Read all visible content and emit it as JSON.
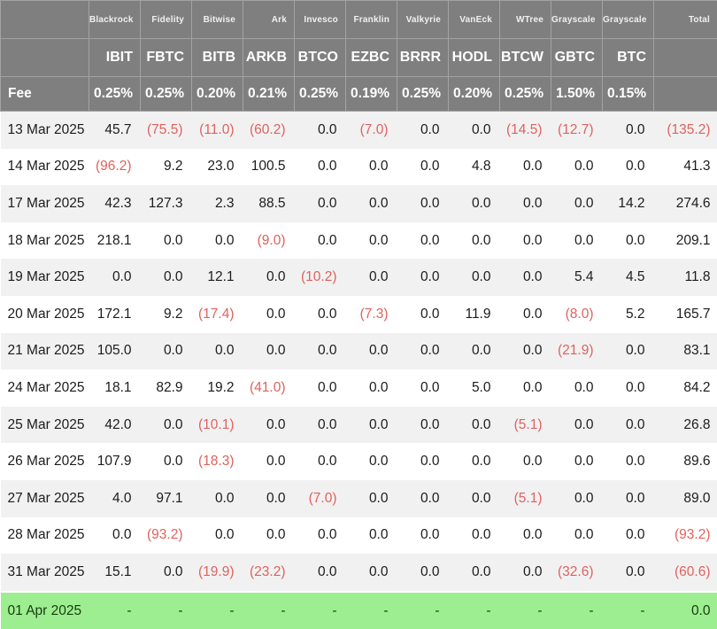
{
  "colors": {
    "header_bg": "#7f7f7f",
    "header_border": "#a3a3a3",
    "header_text": "#ffffff",
    "row_stripe": "#f1f1f2",
    "row_white": "#ffffff",
    "negative": "#e0625c",
    "body_text": "#1c1c1e",
    "highlight_bg": "#9dee90",
    "highlight_text": "#173c10"
  },
  "header": {
    "providers": [
      "Blackrock",
      "Fidelity",
      "Bitwise",
      "Ark",
      "Invesco",
      "Franklin",
      "Valkyrie",
      "VanEck",
      "WTree",
      "Grayscale",
      "Grayscale"
    ],
    "tickers": [
      "IBIT",
      "FBTC",
      "BITB",
      "ARKB",
      "BTCO",
      "EZBC",
      "BRRR",
      "HODL",
      "BTCW",
      "GBTC",
      "BTC"
    ],
    "total_label": "Total",
    "fee_label": "Fee",
    "fees": [
      "0.25%",
      "0.25%",
      "0.20%",
      "0.21%",
      "0.25%",
      "0.19%",
      "0.25%",
      "0.20%",
      "0.25%",
      "1.50%",
      "0.15%"
    ]
  },
  "rows": [
    {
      "date": "13 Mar 2025",
      "values": [
        "45.7",
        "(75.5)",
        "(11.0)",
        "(60.2)",
        "0.0",
        "(7.0)",
        "0.0",
        "0.0",
        "(14.5)",
        "(12.7)",
        "0.0"
      ],
      "total": "(135.2)",
      "highlighted": false
    },
    {
      "date": "14 Mar 2025",
      "values": [
        "(96.2)",
        "9.2",
        "23.0",
        "100.5",
        "0.0",
        "0.0",
        "0.0",
        "4.8",
        "0.0",
        "0.0",
        "0.0"
      ],
      "total": "41.3",
      "highlighted": false
    },
    {
      "date": "17 Mar 2025",
      "values": [
        "42.3",
        "127.3",
        "2.3",
        "88.5",
        "0.0",
        "0.0",
        "0.0",
        "0.0",
        "0.0",
        "0.0",
        "14.2"
      ],
      "total": "274.6",
      "highlighted": false
    },
    {
      "date": "18 Mar 2025",
      "values": [
        "218.1",
        "0.0",
        "0.0",
        "(9.0)",
        "0.0",
        "0.0",
        "0.0",
        "0.0",
        "0.0",
        "0.0",
        "0.0"
      ],
      "total": "209.1",
      "highlighted": false
    },
    {
      "date": "19 Mar 2025",
      "values": [
        "0.0",
        "0.0",
        "12.1",
        "0.0",
        "(10.2)",
        "0.0",
        "0.0",
        "0.0",
        "0.0",
        "5.4",
        "4.5"
      ],
      "total": "11.8",
      "highlighted": false
    },
    {
      "date": "20 Mar 2025",
      "values": [
        "172.1",
        "9.2",
        "(17.4)",
        "0.0",
        "0.0",
        "(7.3)",
        "0.0",
        "11.9",
        "0.0",
        "(8.0)",
        "5.2"
      ],
      "total": "165.7",
      "highlighted": false
    },
    {
      "date": "21 Mar 2025",
      "values": [
        "105.0",
        "0.0",
        "0.0",
        "0.0",
        "0.0",
        "0.0",
        "0.0",
        "0.0",
        "0.0",
        "(21.9)",
        "0.0"
      ],
      "total": "83.1",
      "highlighted": false
    },
    {
      "date": "24 Mar 2025",
      "values": [
        "18.1",
        "82.9",
        "19.2",
        "(41.0)",
        "0.0",
        "0.0",
        "0.0",
        "5.0",
        "0.0",
        "0.0",
        "0.0"
      ],
      "total": "84.2",
      "highlighted": false
    },
    {
      "date": "25 Mar 2025",
      "values": [
        "42.0",
        "0.0",
        "(10.1)",
        "0.0",
        "0.0",
        "0.0",
        "0.0",
        "0.0",
        "(5.1)",
        "0.0",
        "0.0"
      ],
      "total": "26.8",
      "highlighted": false
    },
    {
      "date": "26 Mar 2025",
      "values": [
        "107.9",
        "0.0",
        "(18.3)",
        "0.0",
        "0.0",
        "0.0",
        "0.0",
        "0.0",
        "0.0",
        "0.0",
        "0.0"
      ],
      "total": "89.6",
      "highlighted": false
    },
    {
      "date": "27 Mar 2025",
      "values": [
        "4.0",
        "97.1",
        "0.0",
        "0.0",
        "(7.0)",
        "0.0",
        "0.0",
        "0.0",
        "(5.1)",
        "0.0",
        "0.0"
      ],
      "total": "89.0",
      "highlighted": false
    },
    {
      "date": "28 Mar 2025",
      "values": [
        "0.0",
        "(93.2)",
        "0.0",
        "0.0",
        "0.0",
        "0.0",
        "0.0",
        "0.0",
        "0.0",
        "0.0",
        "0.0"
      ],
      "total": "(93.2)",
      "highlighted": false
    },
    {
      "date": "31 Mar 2025",
      "values": [
        "15.1",
        "0.0",
        "(19.9)",
        "(23.2)",
        "0.0",
        "0.0",
        "0.0",
        "0.0",
        "0.0",
        "(32.6)",
        "0.0"
      ],
      "total": "(60.6)",
      "highlighted": false
    },
    {
      "date": "01 Apr 2025",
      "values": [
        "-",
        "-",
        "-",
        "-",
        "-",
        "-",
        "-",
        "-",
        "-",
        "-",
        "-"
      ],
      "total": "0.0",
      "highlighted": true
    }
  ]
}
